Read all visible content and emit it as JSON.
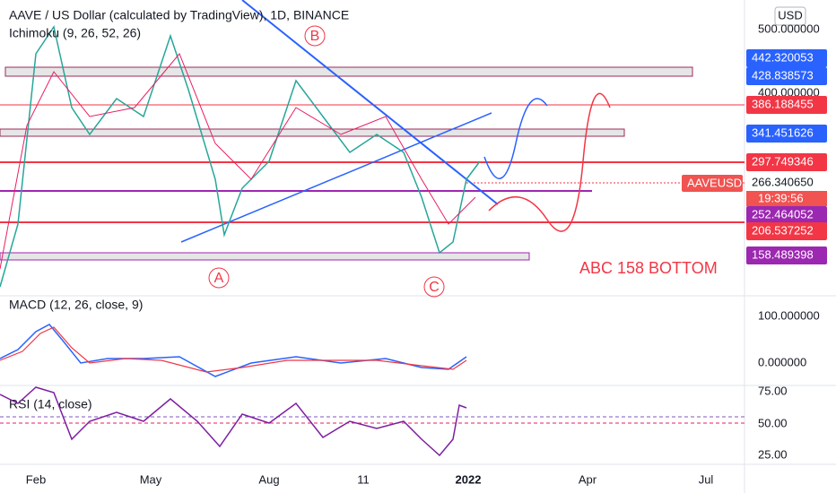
{
  "header": {
    "title": "AAVE / US Dollar (calculated by TradingView), 1D, BINANCE",
    "indicator": "Ichimoku (9, 26, 52, 26)",
    "currency": "USD"
  },
  "annotations": [
    "B",
    "A",
    "C",
    "ABC 158 BOTTOM"
  ],
  "price_axis": [
    "500.000000",
    "400.000000"
  ],
  "price_labels": [
    {
      "text": "442.320053",
      "color": "#2962ff"
    },
    {
      "text": "428.838573",
      "color": "#2962ff"
    },
    {
      "text": "386.188455",
      "color": "#f23645"
    },
    {
      "text": "341.451626",
      "color": "#2962ff"
    },
    {
      "text": "297.749346",
      "color": "#f23645"
    },
    {
      "text": "266.340650",
      "color": "#ffffff"
    },
    {
      "text": "252.464052",
      "color": "#9c27b0"
    },
    {
      "text": "206.537252",
      "color": "#f23645"
    },
    {
      "text": "158.489398",
      "color": "#9c27b0"
    }
  ],
  "symbol_label": {
    "name": "AAVEUSD",
    "countdown": "19:39:56",
    "color": "#f05350"
  },
  "macd": {
    "label": "MACD (12, 26, close, 9)",
    "ticks": [
      "100.000000",
      "0.000000"
    ]
  },
  "rsi": {
    "label": "RSI (14, close)",
    "ticks": [
      "75.00",
      "50.00",
      "25.00"
    ]
  },
  "time_axis": [
    "Feb",
    "May",
    "Aug",
    "11",
    "2022",
    "Apr",
    "Jul"
  ]
}
